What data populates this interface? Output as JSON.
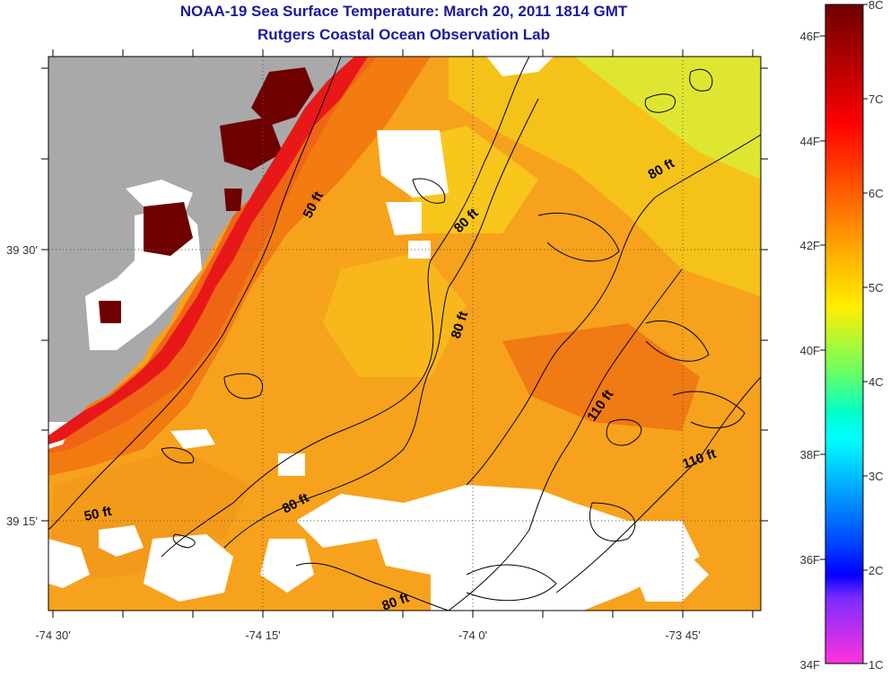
{
  "title": "NOAA-19 Sea Surface Temperature:  March 20, 2011 1814 GMT",
  "subtitle": "Rutgers Coastal Ocean Observation Lab",
  "axes": {
    "x_ticks": [
      "-74 30'",
      "-74 15'",
      "-74 0'",
      "-73 45'"
    ],
    "y_ticks": [
      "39 30'",
      "39 15'"
    ]
  },
  "contour_labels": [
    "50 ft",
    "50 ft",
    "80 ft",
    "80 ft",
    "80 ft",
    "80 ft",
    "80 ft",
    "110 ft",
    "110 ft"
  ],
  "colorbar": {
    "fahrenheit_labels": [
      "46F",
      "44F",
      "42F",
      "40F",
      "38F",
      "36F",
      "34F"
    ],
    "celsius_labels": [
      "8C",
      "7C",
      "6C",
      "5C",
      "4C",
      "3C",
      "2C",
      "1C"
    ]
  },
  "colors": {
    "land": "#a9a9a9",
    "no_data": "#ffffff",
    "title": "#1a1a9c"
  }
}
